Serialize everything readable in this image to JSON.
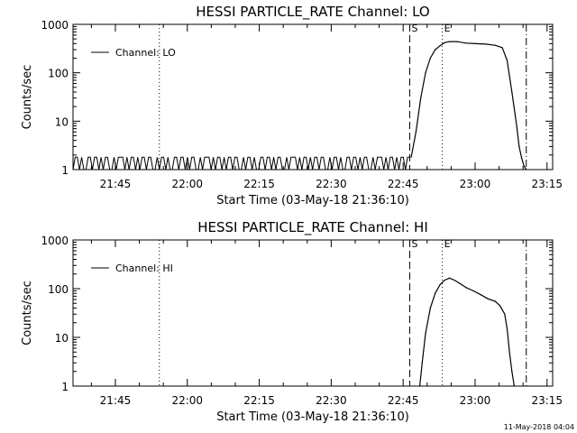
{
  "footer": {
    "timestamp": "11-May-2018 04:04"
  },
  "chart_data": [
    {
      "type": "line",
      "title": "HESSI PARTICLE_RATE Channel: LO",
      "xlabel": "Start Time (03-May-18 21:36:10)",
      "ylabel": "Counts/sec",
      "x_unit": "minutes after 21:36:10",
      "xlim": [
        0,
        100
      ],
      "ylim": [
        1,
        1000
      ],
      "yscale": "log",
      "xticks": [
        {
          "label": "21:45",
          "value": 8.83
        },
        {
          "label": "22:00",
          "value": 23.83
        },
        {
          "label": "22:15",
          "value": 38.83
        },
        {
          "label": "22:30",
          "value": 53.83
        },
        {
          "label": "22:45",
          "value": 68.83
        },
        {
          "label": "23:00",
          "value": 83.83
        },
        {
          "label": "23:15",
          "value": 98.83
        }
      ],
      "yticks": [
        {
          "label": "1",
          "value": 1
        },
        {
          "label": "10",
          "value": 10
        },
        {
          "label": "100",
          "value": 100
        },
        {
          "label": "1000",
          "value": 1000
        }
      ],
      "legend": {
        "position": "top-left",
        "entries": [
          "Channel: LO"
        ]
      },
      "markers": [
        {
          "label": "",
          "x": 18.0,
          "style": "dotted"
        },
        {
          "label": "S",
          "x": 70.2,
          "style": "dashed"
        },
        {
          "label": "E",
          "x": 77.0,
          "style": "dotted"
        },
        {
          "label": "",
          "x": 94.5,
          "style": "dashdot"
        }
      ],
      "noise": {
        "x_start": 0,
        "x_end": 70.5,
        "low": 1,
        "high": 1.8
      },
      "series": [
        {
          "name": "Channel: LO",
          "x": [
            70.5,
            71.5,
            72.5,
            73.5,
            74.5,
            75.5,
            76.5,
            77.5,
            78.5,
            80,
            82,
            84,
            86,
            88,
            89.5,
            90.5,
            91.5,
            92.5,
            93,
            93.5,
            94,
            94.5
          ],
          "y": [
            1.8,
            6,
            30,
            100,
            200,
            300,
            360,
            420,
            440,
            440,
            410,
            400,
            390,
            370,
            330,
            180,
            40,
            8,
            3,
            1.8,
            1.2,
            1
          ]
        }
      ]
    },
    {
      "type": "line",
      "title": "HESSI PARTICLE_RATE Channel: HI",
      "xlabel": "Start Time (03-May-18 21:36:10)",
      "ylabel": "Counts/sec",
      "x_unit": "minutes after 21:36:10",
      "xlim": [
        0,
        100
      ],
      "ylim": [
        1,
        1000
      ],
      "yscale": "log",
      "xticks": [
        {
          "label": "21:45",
          "value": 8.83
        },
        {
          "label": "22:00",
          "value": 23.83
        },
        {
          "label": "22:15",
          "value": 38.83
        },
        {
          "label": "22:30",
          "value": 53.83
        },
        {
          "label": "22:45",
          "value": 68.83
        },
        {
          "label": "23:00",
          "value": 83.83
        },
        {
          "label": "23:15",
          "value": 98.83
        }
      ],
      "yticks": [
        {
          "label": "1",
          "value": 1
        },
        {
          "label": "10",
          "value": 10
        },
        {
          "label": "100",
          "value": 100
        },
        {
          "label": "1000",
          "value": 1000
        }
      ],
      "legend": {
        "position": "top-left",
        "entries": [
          "Channel: HI"
        ]
      },
      "markers": [
        {
          "label": "",
          "x": 18.0,
          "style": "dotted"
        },
        {
          "label": "S",
          "x": 70.2,
          "style": "dashed"
        },
        {
          "label": "E",
          "x": 77.0,
          "style": "dotted"
        },
        {
          "label": "",
          "x": 94.5,
          "style": "dashdot"
        }
      ],
      "series": [
        {
          "name": "Channel: HI",
          "x": [
            72.3,
            72.8,
            73.5,
            74.5,
            75.5,
            76.5,
            77.5,
            78.5,
            79.5,
            80.5,
            82,
            83.5,
            85,
            86.5,
            88,
            89,
            90,
            90.5,
            91,
            91.5,
            92
          ],
          "y": [
            1,
            3,
            12,
            40,
            80,
            120,
            150,
            165,
            150,
            130,
            105,
            90,
            75,
            62,
            55,
            45,
            30,
            15,
            5,
            2,
            1
          ]
        }
      ]
    }
  ]
}
